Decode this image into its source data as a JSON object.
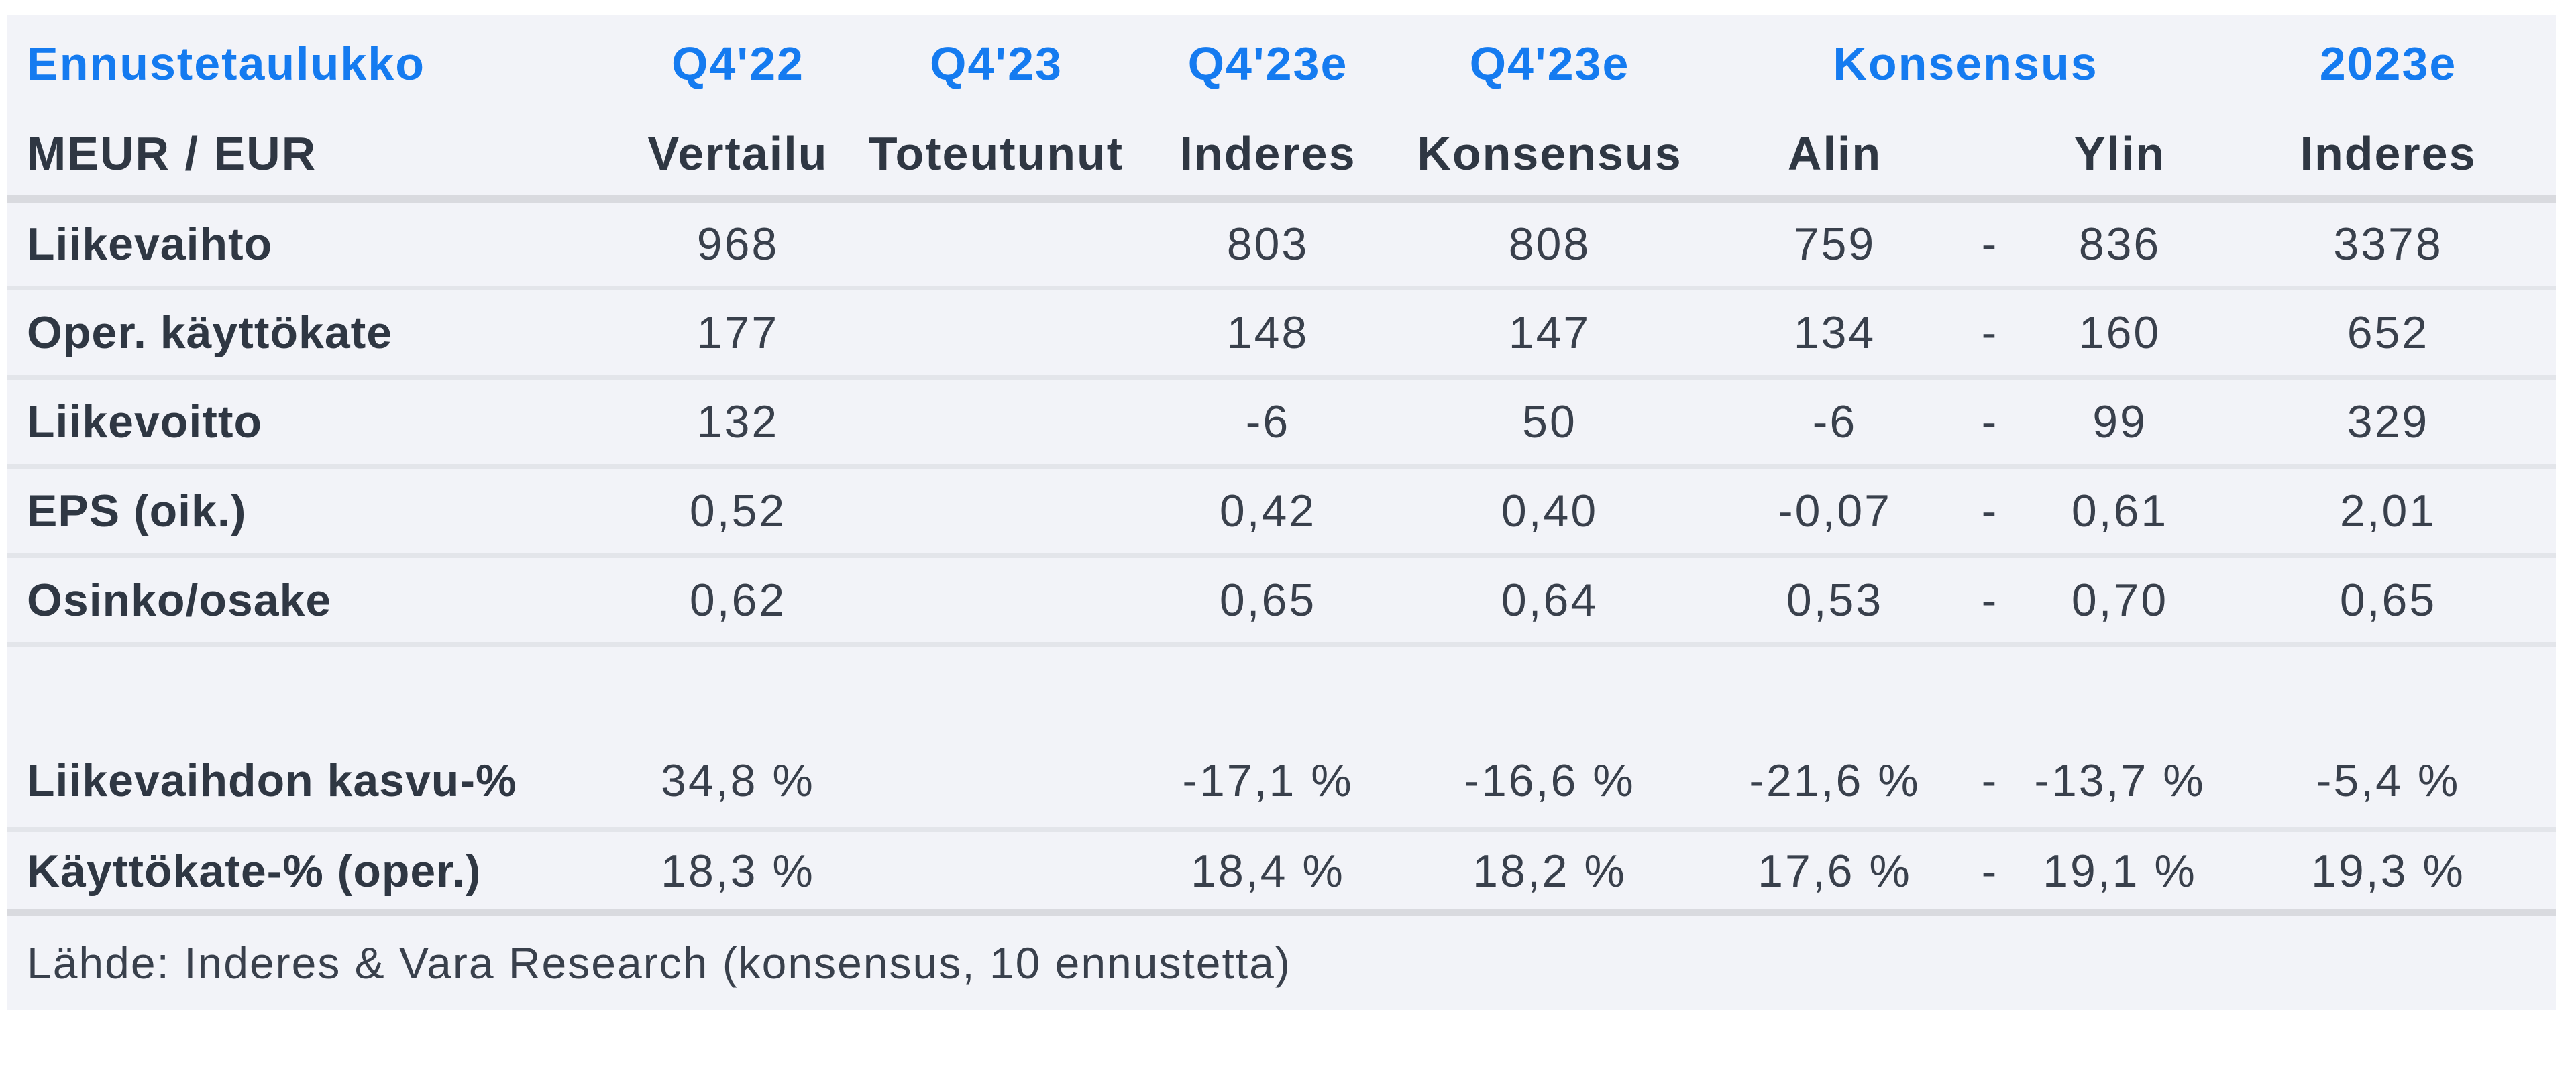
{
  "chart_data": {
    "type": "table",
    "title": "Ennustetaulukko",
    "unit_label": "MEUR / EUR",
    "header_top": {
      "q4_22": "Q4'22",
      "q4_23": "Q4'23",
      "q4_23e_inderes": "Q4'23e",
      "q4_23e_konsensus": "Q4'23e",
      "konsensus_group": "Konsensus",
      "y2023e": "2023e"
    },
    "header_sub": {
      "vertailu": "Vertailu",
      "toteutunut": "Toteutunut",
      "inderes": "Inderes",
      "konsensus": "Konsensus",
      "alin": "Alin",
      "ylin": "Ylin",
      "inderes_2023": "Inderes"
    },
    "rows": [
      {
        "label": "Liikevaihto",
        "vertailu": "968",
        "toteutunut": "",
        "inderes": "803",
        "konsensus": "808",
        "alin": "759",
        "range_sep": "-",
        "ylin": "836",
        "inderes_2023": "3378"
      },
      {
        "label": "Oper. käyttökate",
        "vertailu": "177",
        "toteutunut": "",
        "inderes": "148",
        "konsensus": "147",
        "alin": "134",
        "range_sep": "-",
        "ylin": "160",
        "inderes_2023": "652"
      },
      {
        "label": "Liikevoitto",
        "vertailu": "132",
        "toteutunut": "",
        "inderes": "-6",
        "konsensus": "50",
        "alin": "-6",
        "range_sep": "-",
        "ylin": "99",
        "inderes_2023": "329"
      },
      {
        "label": "EPS (oik.)",
        "vertailu": "0,52",
        "toteutunut": "",
        "inderes": "0,42",
        "konsensus": "0,40",
        "alin": "-0,07",
        "range_sep": "-",
        "ylin": "0,61",
        "inderes_2023": "2,01"
      },
      {
        "label": "Osinko/osake",
        "vertailu": "0,62",
        "toteutunut": "",
        "inderes": "0,65",
        "konsensus": "0,64",
        "alin": "0,53",
        "range_sep": "-",
        "ylin": "0,70",
        "inderes_2023": "0,65"
      },
      {
        "label": "Liikevaihdon kasvu-%",
        "vertailu": "34,8 %",
        "toteutunut": "",
        "inderes": "-17,1 %",
        "konsensus": "-16,6 %",
        "alin": "-21,6 %",
        "range_sep": "-",
        "ylin": "-13,7 %",
        "inderes_2023": "-5,4 %"
      },
      {
        "label": "Käyttökate-% (oper.)",
        "vertailu": "18,3 %",
        "toteutunut": "",
        "inderes": "18,4 %",
        "konsensus": "18,2 %",
        "alin": "17,6 %",
        "range_sep": "-",
        "ylin": "19,1 %",
        "inderes_2023": "19,3 %"
      }
    ],
    "source_note": "Lähde: Inderes & Vara Research (konsensus, 10 ennustetta)",
    "layout": {
      "legend": "none",
      "grid": "horizontal-separators"
    },
    "colors": {
      "header_blue": "#157bf0",
      "label_dark": "#2f3743",
      "value_dark": "#39404c",
      "table_background": "#f2f3f8",
      "separator_light": "#e3e5ea",
      "separator_strong": "#d9dadf",
      "page_background": "#ffffff"
    }
  }
}
